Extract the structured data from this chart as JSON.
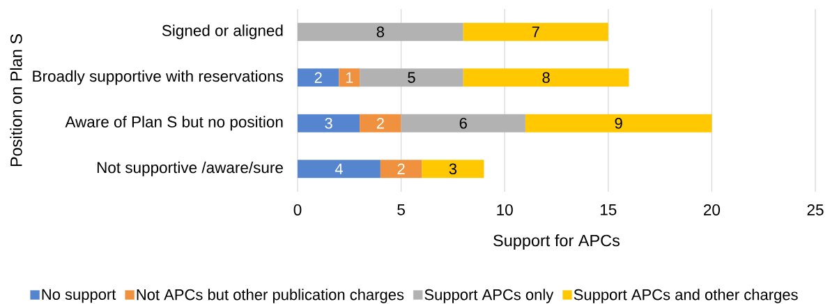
{
  "chart_data": {
    "type": "bar",
    "orientation": "horizontal",
    "stacked": true,
    "categories": [
      "Signed or aligned",
      "Broadly supportive with reservations",
      "Aware of Plan S but no position",
      "Not supportive /aware/sure"
    ],
    "series": [
      {
        "name": "No support",
        "color": "#5585cf",
        "values": [
          null,
          2,
          3,
          4
        ]
      },
      {
        "name": "Not APCs but other publication charges",
        "color": "#f0913f",
        "values": [
          null,
          1,
          2,
          2
        ]
      },
      {
        "name": "Support APCs only",
        "color": "#b2b2b2",
        "values": [
          8,
          5,
          6,
          null
        ]
      },
      {
        "name": "Support APCs and other charges",
        "color": "#ffc800",
        "values": [
          7,
          8,
          9,
          3
        ]
      }
    ],
    "xlabel": "Support for APCs",
    "ylabel": "Position on Plan S",
    "xlim": [
      0,
      25
    ],
    "xticks": [
      0,
      5,
      10,
      15,
      20,
      25
    ],
    "grid": "x",
    "legend": "bottom",
    "data_labels": true
  }
}
